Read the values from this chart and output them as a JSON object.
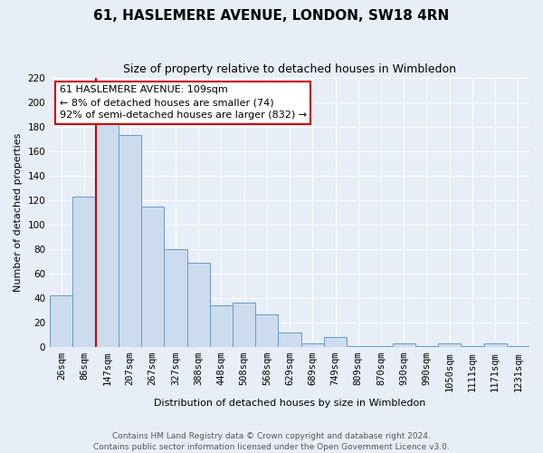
{
  "title": "61, HASLEMERE AVENUE, LONDON, SW18 4RN",
  "subtitle": "Size of property relative to detached houses in Wimbledon",
  "xlabel": "Distribution of detached houses by size in Wimbledon",
  "ylabel": "Number of detached properties",
  "bar_labels": [
    "26sqm",
    "86sqm",
    "147sqm",
    "207sqm",
    "267sqm",
    "327sqm",
    "388sqm",
    "448sqm",
    "508sqm",
    "568sqm",
    "629sqm",
    "689sqm",
    "749sqm",
    "809sqm",
    "870sqm",
    "930sqm",
    "990sqm",
    "1050sqm",
    "1111sqm",
    "1171sqm",
    "1231sqm"
  ],
  "bar_values": [
    42,
    123,
    184,
    173,
    115,
    80,
    69,
    34,
    36,
    27,
    12,
    3,
    8,
    1,
    1,
    3,
    1,
    3,
    1,
    3,
    1
  ],
  "bar_color": "#ccdcee",
  "bar_edge_color": "#6699cc",
  "ylim": [
    0,
    220
  ],
  "yticks": [
    0,
    20,
    40,
    60,
    80,
    100,
    120,
    140,
    160,
    180,
    200,
    220
  ],
  "subject_line_color": "#cc0000",
  "annotation_title": "61 HASLEMERE AVENUE: 109sqm",
  "annotation_line1": "← 8% of detached houses are smaller (74)",
  "annotation_line2": "92% of semi-detached houses are larger (832) →",
  "annotation_box_color": "#ffffff",
  "annotation_box_edge": "#cc0000",
  "footer_line1": "Contains HM Land Registry data © Crown copyright and database right 2024.",
  "footer_line2": "Contains public sector information licensed under the Open Government Licence v3.0.",
  "background_color": "#e8eef8",
  "grid_color": "#ffffff",
  "title_fontsize": 11,
  "subtitle_fontsize": 9,
  "ylabel_fontsize": 8,
  "xlabel_fontsize": 8,
  "tick_fontsize": 7.5,
  "annotation_fontsize": 8,
  "footer_fontsize": 6.5
}
